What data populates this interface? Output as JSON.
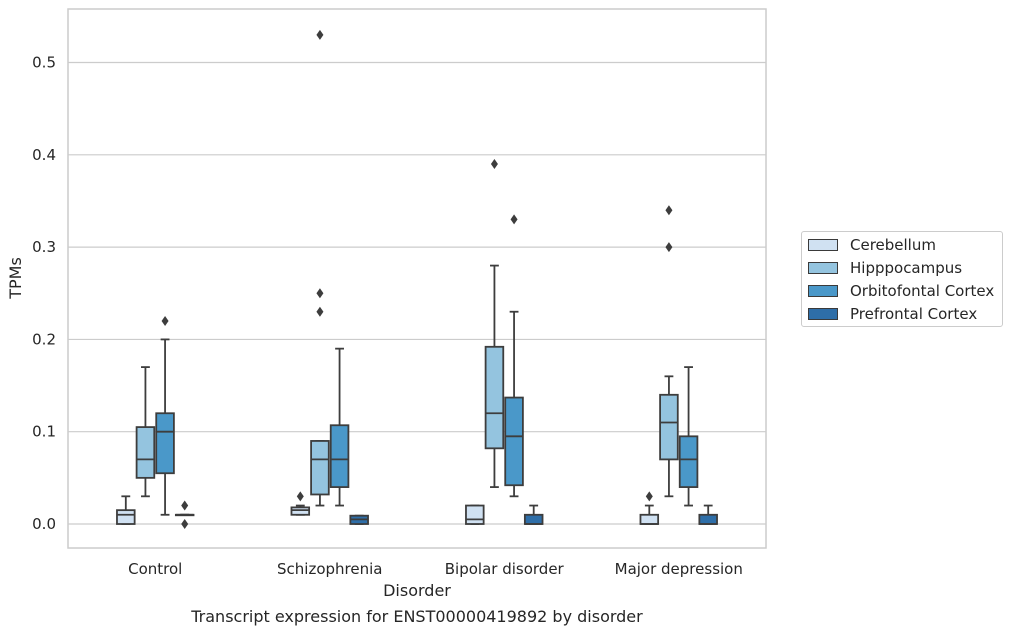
{
  "chart_data": {
    "type": "box",
    "title": "Transcript expression for ENST00000419892 by disorder",
    "xlabel": "Disorder",
    "ylabel": "TPMs",
    "ylim": [
      -0.026,
      0.558
    ],
    "yticks": [
      "0.0",
      "0.1",
      "0.2",
      "0.3",
      "0.4",
      "0.5"
    ],
    "grid": true,
    "legend_position": "right",
    "categories": [
      "Control",
      "Schizophrenia",
      "Bipolar disorder",
      "Major depression"
    ],
    "series": [
      {
        "name": "Cerebellum",
        "color": "#d0e1f2",
        "boxes": [
          {
            "whisker_low": 0.0,
            "q1": 0.0,
            "median": 0.01,
            "q3": 0.015,
            "whisker_high": 0.03,
            "outliers": []
          },
          {
            "whisker_low": 0.01,
            "q1": 0.01,
            "median": 0.015,
            "q3": 0.018,
            "whisker_high": 0.02,
            "outliers": [
              0.03
            ]
          },
          {
            "whisker_low": 0.0,
            "q1": 0.0,
            "median": 0.005,
            "q3": 0.02,
            "whisker_high": 0.02,
            "outliers": []
          },
          {
            "whisker_low": 0.0,
            "q1": 0.0,
            "median": 0.0,
            "q3": 0.01,
            "whisker_high": 0.02,
            "outliers": [
              0.03
            ]
          }
        ]
      },
      {
        "name": "Hipppocampus",
        "color": "#94c4df",
        "boxes": [
          {
            "whisker_low": 0.03,
            "q1": 0.05,
            "median": 0.07,
            "q3": 0.105,
            "whisker_high": 0.17,
            "outliers": []
          },
          {
            "whisker_low": 0.02,
            "q1": 0.032,
            "median": 0.07,
            "q3": 0.09,
            "whisker_high": 0.09,
            "outliers": [
              0.23,
              0.25,
              0.53
            ]
          },
          {
            "whisker_low": 0.04,
            "q1": 0.082,
            "median": 0.12,
            "q3": 0.192,
            "whisker_high": 0.28,
            "outliers": [
              0.39
            ]
          },
          {
            "whisker_low": 0.03,
            "q1": 0.07,
            "median": 0.11,
            "q3": 0.14,
            "whisker_high": 0.16,
            "outliers": [
              0.3,
              0.34
            ]
          }
        ]
      },
      {
        "name": "Orbitofontal Cortex",
        "color": "#4a98c9",
        "boxes": [
          {
            "whisker_low": 0.01,
            "q1": 0.055,
            "median": 0.1,
            "q3": 0.12,
            "whisker_high": 0.2,
            "outliers": [
              0.22
            ]
          },
          {
            "whisker_low": 0.02,
            "q1": 0.04,
            "median": 0.07,
            "q3": 0.107,
            "whisker_high": 0.19,
            "outliers": []
          },
          {
            "whisker_low": 0.03,
            "q1": 0.042,
            "median": 0.095,
            "q3": 0.137,
            "whisker_high": 0.23,
            "outliers": [
              0.33
            ]
          },
          {
            "whisker_low": 0.02,
            "q1": 0.04,
            "median": 0.07,
            "q3": 0.095,
            "whisker_high": 0.17,
            "outliers": []
          }
        ]
      },
      {
        "name": "Prefrontal Cortex",
        "color": "#2e6ea8",
        "boxes": [
          {
            "whisker_low": 0.01,
            "q1": 0.01,
            "median": 0.01,
            "q3": 0.01,
            "whisker_high": 0.01,
            "outliers": [
              0.0,
              0.02
            ]
          },
          {
            "whisker_low": 0.0,
            "q1": 0.0,
            "median": 0.005,
            "q3": 0.009,
            "whisker_high": 0.009,
            "outliers": []
          },
          {
            "whisker_low": 0.0,
            "q1": 0.0,
            "median": 0.0,
            "q3": 0.01,
            "whisker_high": 0.02,
            "outliers": []
          },
          {
            "whisker_low": 0.0,
            "q1": 0.0,
            "median": 0.0,
            "q3": 0.01,
            "whisker_high": 0.02,
            "outliers": []
          }
        ]
      }
    ]
  }
}
